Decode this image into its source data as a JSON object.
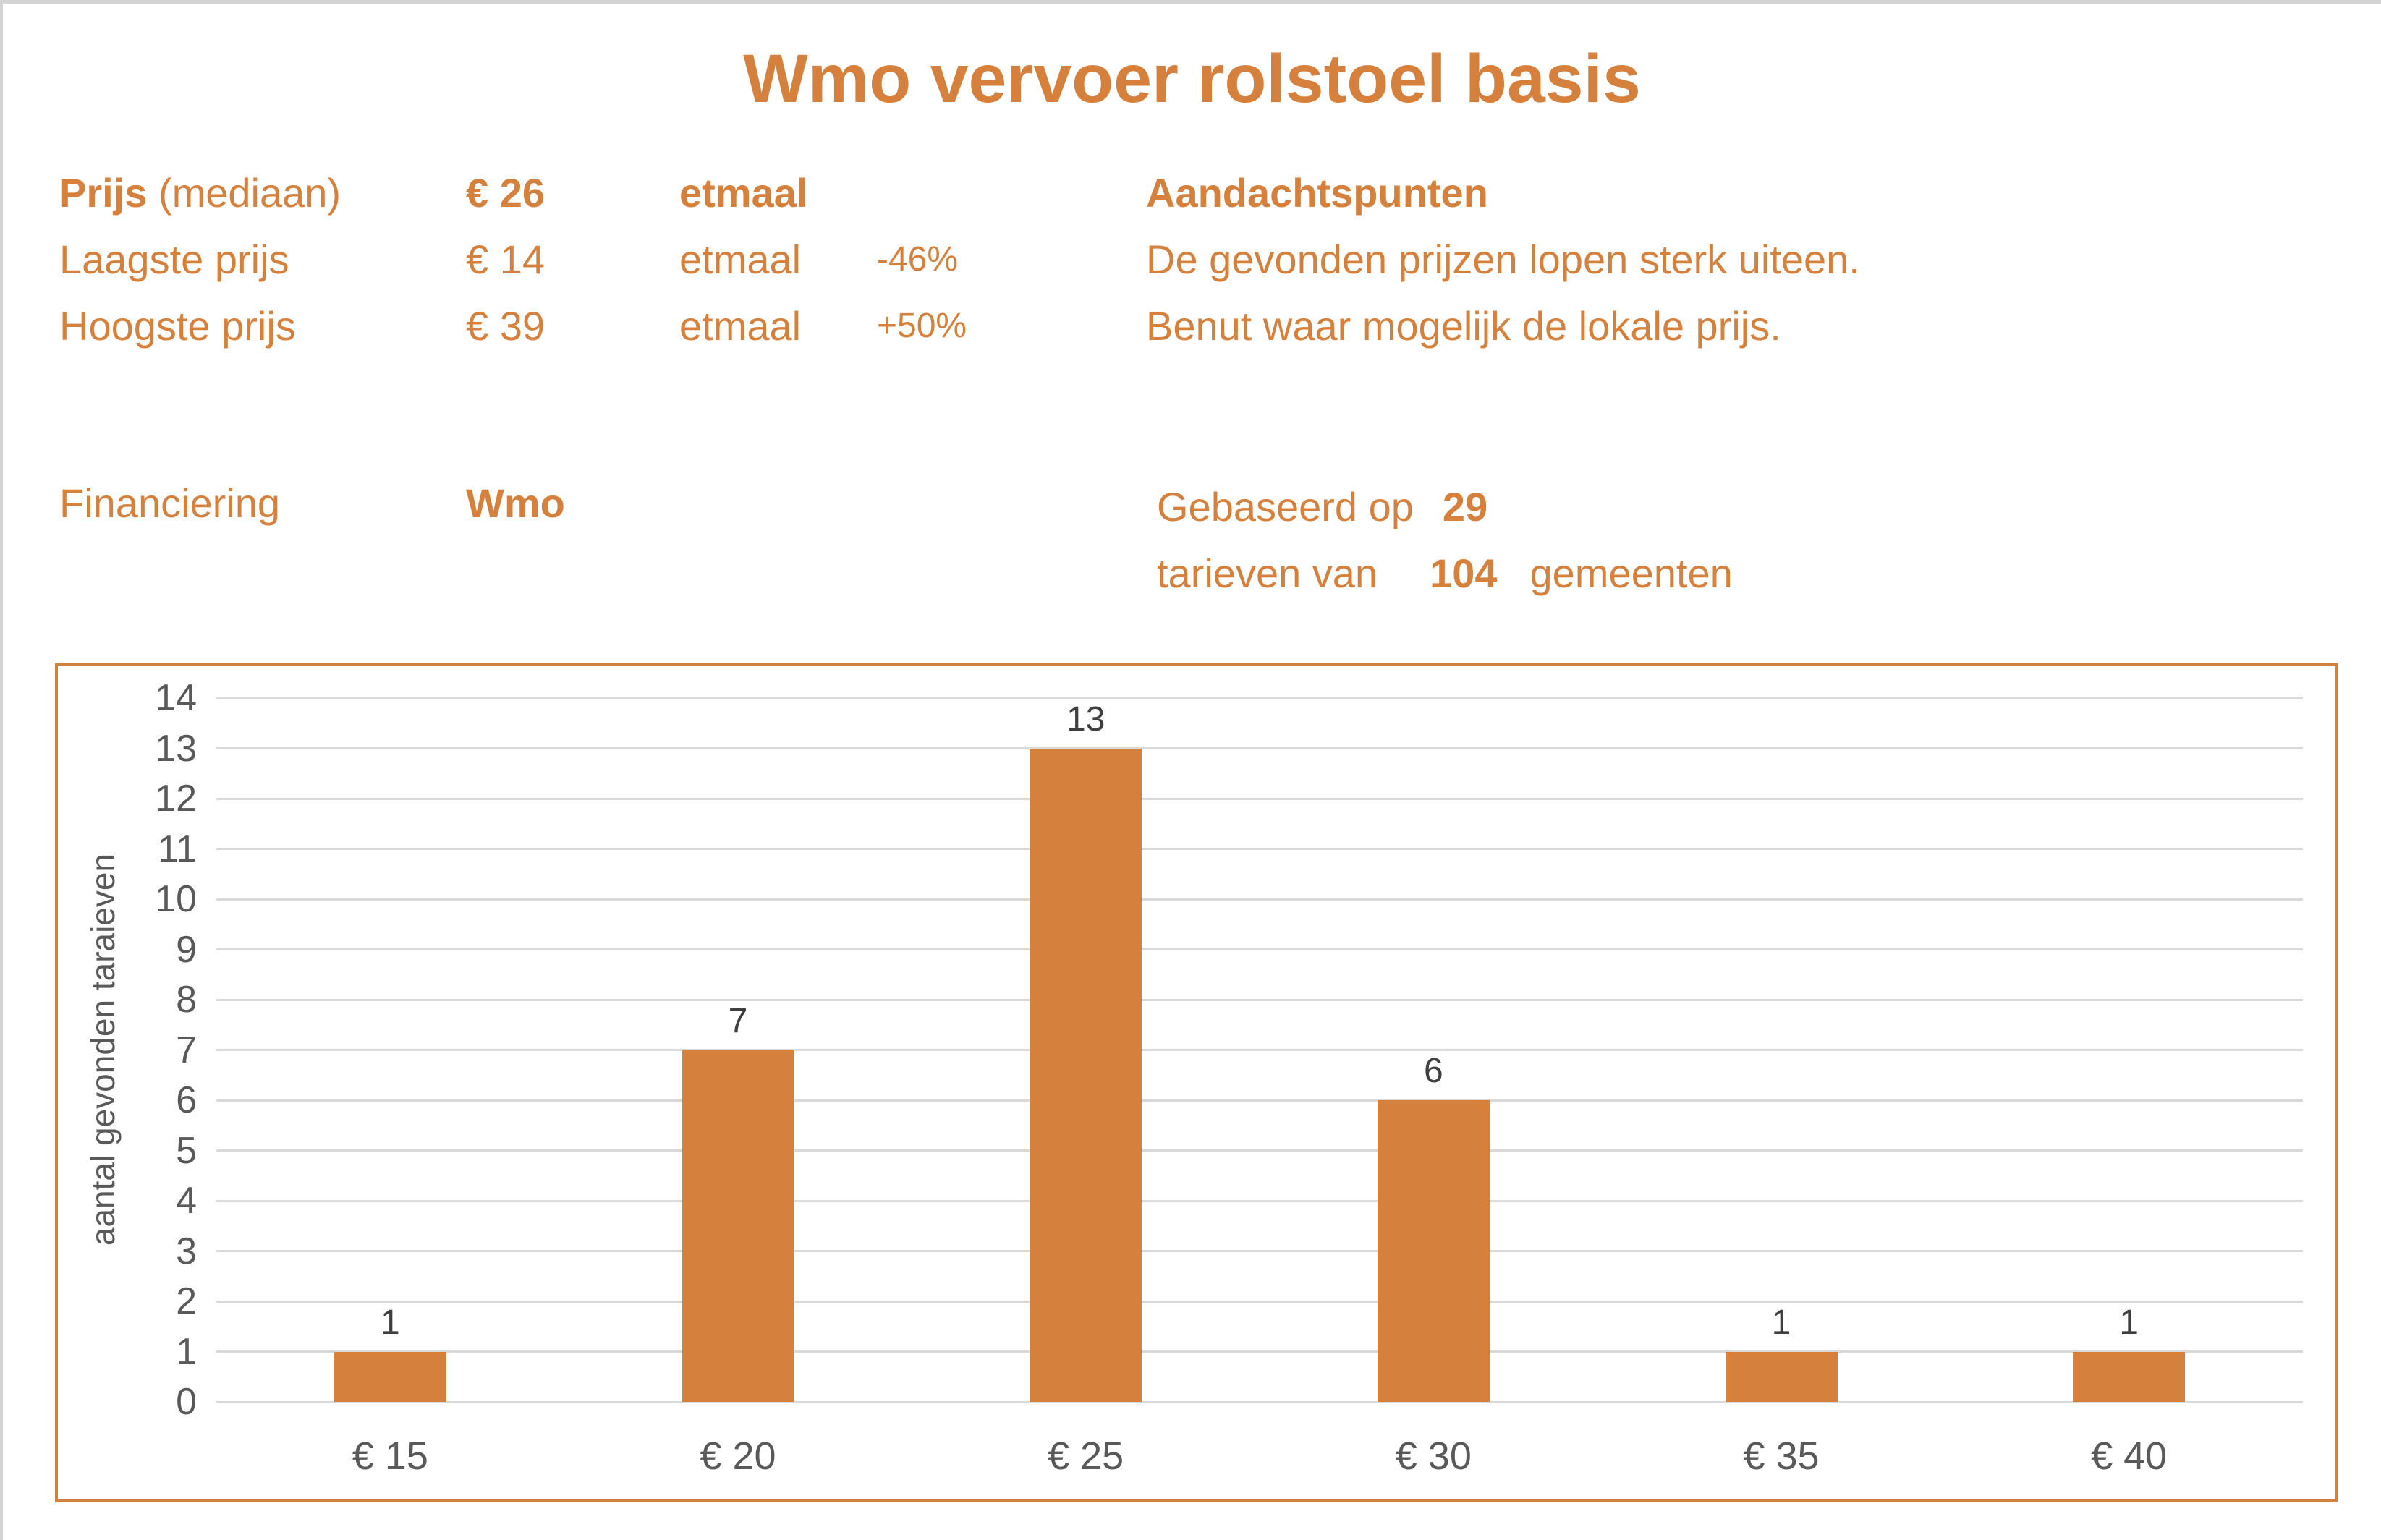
{
  "title": "Wmo vervoer rolstoel basis",
  "colors": {
    "accent": "#D5803C",
    "gridline": "#D9D9D9",
    "tick_text": "#595959",
    "data_label_text": "#3F3F3F",
    "page_border": "#D4D4D4"
  },
  "stats": {
    "rows": [
      {
        "label_strong": "Prijs",
        "label_normal": " (mediaan)",
        "value": "€ 26",
        "unit": "etmaal",
        "delta": ""
      },
      {
        "label_strong": "",
        "label_normal": "Laagste prijs",
        "value": "€ 14",
        "unit": "etmaal",
        "delta": "-46%"
      },
      {
        "label_strong": "",
        "label_normal": "Hoogste prijs",
        "value": "€ 39",
        "unit": "etmaal",
        "delta": "+50%"
      }
    ]
  },
  "aandacht": {
    "heading": "Aandachtspunten",
    "lines": [
      "De gevonden prijzen lopen sterk uiteen.",
      "Benut waar mogelijk de lokale prijs."
    ]
  },
  "financiering": {
    "label": "Financiering",
    "value": "Wmo"
  },
  "basis": {
    "line1_prefix": "Gebaseerd op",
    "tarieven_count": "29",
    "line2_prefix": "tarieven van",
    "gemeenten_count": "104",
    "line2_suffix": "gemeenten"
  },
  "chart_data": {
    "type": "bar",
    "categories": [
      "€ 15",
      "€ 20",
      "€ 25",
      "€ 30",
      "€ 35",
      "€ 40"
    ],
    "values": [
      1,
      7,
      13,
      6,
      1,
      1
    ],
    "title": "",
    "xlabel": "",
    "ylabel": "aantal gevonden taraieven",
    "ylim": [
      0,
      14
    ],
    "ytick_step": 1,
    "grid": true,
    "legend": false,
    "bar_color": "#D5803C",
    "grid_color": "#D9D9D9"
  }
}
